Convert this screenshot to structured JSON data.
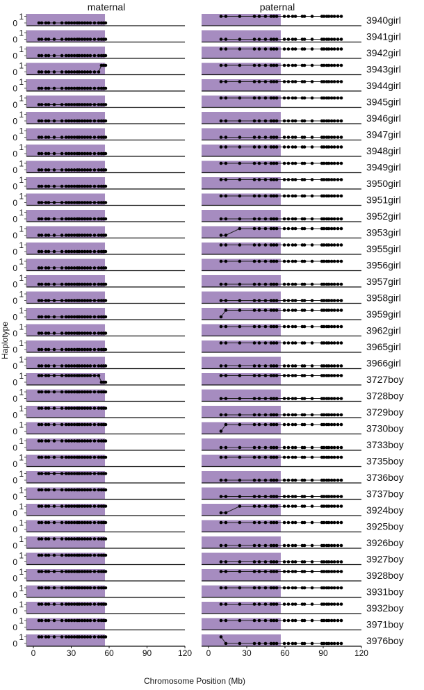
{
  "chart_data": {
    "type": "scatter",
    "panel_titles": [
      "maternal",
      "paternal"
    ],
    "xlabel": "Chromosome Position (Mb)",
    "ylabel": "Haplotype",
    "xlim": [
      -5.5,
      120
    ],
    "xticks": [
      0,
      30,
      60,
      90,
      120
    ],
    "yticks": [
      0,
      1
    ],
    "highlight_region_mb": [
      -5.5,
      56.7
    ],
    "highlight_color": "#a68cc0",
    "marker_positions_mb": {
      "maternal": [
        4.4,
        6.6,
        9.9,
        12.1,
        16.5,
        22.6,
        25.9,
        28.1,
        30.3,
        32.5,
        34.7,
        36.3,
        38.5,
        40.7,
        42.9,
        45.1,
        48.4,
        51.7,
        53.9,
        55.6,
        57.2
      ],
      "paternal": [
        9.8,
        13.6,
        24.5,
        36.0,
        39.8,
        44.7,
        49.1,
        51.3,
        53.5,
        59.5,
        62.7,
        66.0,
        68.2,
        73.6,
        75.3,
        81.3,
        89.0,
        90.6,
        92.8,
        94.4,
        96.6,
        98.8,
        101.5,
        104.2
      ]
    },
    "samples": [
      {
        "label": "3940girl",
        "maternal": {
          "hap": 0
        },
        "paternal": {
          "hap": 1
        }
      },
      {
        "label": "3941girl",
        "maternal": {
          "hap": 0
        },
        "paternal": {
          "hap": 0
        }
      },
      {
        "label": "3942girl",
        "maternal": {
          "hap": 0
        },
        "paternal": {
          "hap": 1
        }
      },
      {
        "label": "3943girl",
        "maternal": {
          "hap": 0,
          "switch_index": 18,
          "switch_to": 1
        },
        "paternal": {
          "hap": 1
        }
      },
      {
        "label": "3944girl",
        "maternal": {
          "hap": 0
        },
        "paternal": {
          "hap": 1
        }
      },
      {
        "label": "3945girl",
        "maternal": {
          "hap": 0
        },
        "paternal": {
          "hap": 1
        }
      },
      {
        "label": "3946girl",
        "maternal": {
          "hap": 0
        },
        "paternal": {
          "hap": 0
        }
      },
      {
        "label": "3947girl",
        "maternal": {
          "hap": 0
        },
        "paternal": {
          "hap": 0
        }
      },
      {
        "label": "3948girl",
        "maternal": {
          "hap": 0
        },
        "paternal": {
          "hap": 1
        }
      },
      {
        "label": "3949girl",
        "maternal": {
          "hap": 0
        },
        "paternal": {
          "hap": 1
        }
      },
      {
        "label": "3950girl",
        "maternal": {
          "hap": 0
        },
        "paternal": {
          "hap": 1
        }
      },
      {
        "label": "3951girl",
        "maternal": {
          "hap": 0
        },
        "paternal": {
          "hap": 1
        }
      },
      {
        "label": "3952girl",
        "maternal": {
          "hap": 0
        },
        "paternal": {
          "hap": 0
        }
      },
      {
        "label": "3953girl",
        "maternal": {
          "hap": 0
        },
        "paternal": {
          "hap": 0,
          "switch_index": 2,
          "switch_to": 1
        }
      },
      {
        "label": "3955girl",
        "maternal": {
          "hap": 0
        },
        "paternal": {
          "hap": 1
        }
      },
      {
        "label": "3956girl",
        "maternal": {
          "hap": 0
        },
        "paternal": {
          "hap": 1
        }
      },
      {
        "label": "3957girl",
        "maternal": {
          "hap": 0
        },
        "paternal": {
          "hap": 0
        }
      },
      {
        "label": "3958girl",
        "maternal": {
          "hap": 0
        },
        "paternal": {
          "hap": 0
        }
      },
      {
        "label": "3959girl",
        "maternal": {
          "hap": 0
        },
        "paternal": {
          "hap": 0,
          "switch_index": 1,
          "switch_to": 1
        }
      },
      {
        "label": "3962girl",
        "maternal": {
          "hap": 0
        },
        "paternal": {
          "hap": 1
        }
      },
      {
        "label": "3965girl",
        "maternal": {
          "hap": 0
        },
        "paternal": {
          "hap": 1
        }
      },
      {
        "label": "3966girl",
        "maternal": {
          "hap": 0
        },
        "paternal": {
          "hap": 0
        }
      },
      {
        "label": "3727boy",
        "maternal": {
          "hap": 1,
          "switch_index": 18,
          "switch_to": 0
        },
        "paternal": {
          "hap": 1
        }
      },
      {
        "label": "3728boy",
        "maternal": {
          "hap": 1
        },
        "paternal": {
          "hap": 0
        }
      },
      {
        "label": "3729boy",
        "maternal": {
          "hap": 1
        },
        "paternal": {
          "hap": 0
        }
      },
      {
        "label": "3730boy",
        "maternal": {
          "hap": 1
        },
        "paternal": {
          "hap": 0,
          "switch_index": 1,
          "switch_to": 1
        }
      },
      {
        "label": "3733boy",
        "maternal": {
          "hap": 1
        },
        "paternal": {
          "hap": 0
        }
      },
      {
        "label": "3735boy",
        "maternal": {
          "hap": 1
        },
        "paternal": {
          "hap": 1
        }
      },
      {
        "label": "3736boy",
        "maternal": {
          "hap": 1
        },
        "paternal": {
          "hap": 0
        }
      },
      {
        "label": "3737boy",
        "maternal": {
          "hap": 1
        },
        "paternal": {
          "hap": 0
        }
      },
      {
        "label": "3924boy",
        "maternal": {
          "hap": 1
        },
        "paternal": {
          "hap": 0,
          "switch_index": 2,
          "switch_to": 1
        }
      },
      {
        "label": "3925boy",
        "maternal": {
          "hap": 1
        },
        "paternal": {
          "hap": 1
        }
      },
      {
        "label": "3926boy",
        "maternal": {
          "hap": 1
        },
        "paternal": {
          "hap": 0
        }
      },
      {
        "label": "3927boy",
        "maternal": {
          "hap": 1
        },
        "paternal": {
          "hap": 0
        }
      },
      {
        "label": "3928boy",
        "maternal": {
          "hap": 1
        },
        "paternal": {
          "hap": 1
        }
      },
      {
        "label": "3931boy",
        "maternal": {
          "hap": 1
        },
        "paternal": {
          "hap": 1
        }
      },
      {
        "label": "3932boy",
        "maternal": {
          "hap": 1
        },
        "paternal": {
          "hap": 1
        }
      },
      {
        "label": "3971boy",
        "maternal": {
          "hap": 1
        },
        "paternal": {
          "hap": 1
        }
      },
      {
        "label": "3976boy",
        "maternal": {
          "hap": 1
        },
        "paternal": {
          "hap": 1,
          "switch_index": 1,
          "switch_to": 0
        }
      }
    ]
  }
}
